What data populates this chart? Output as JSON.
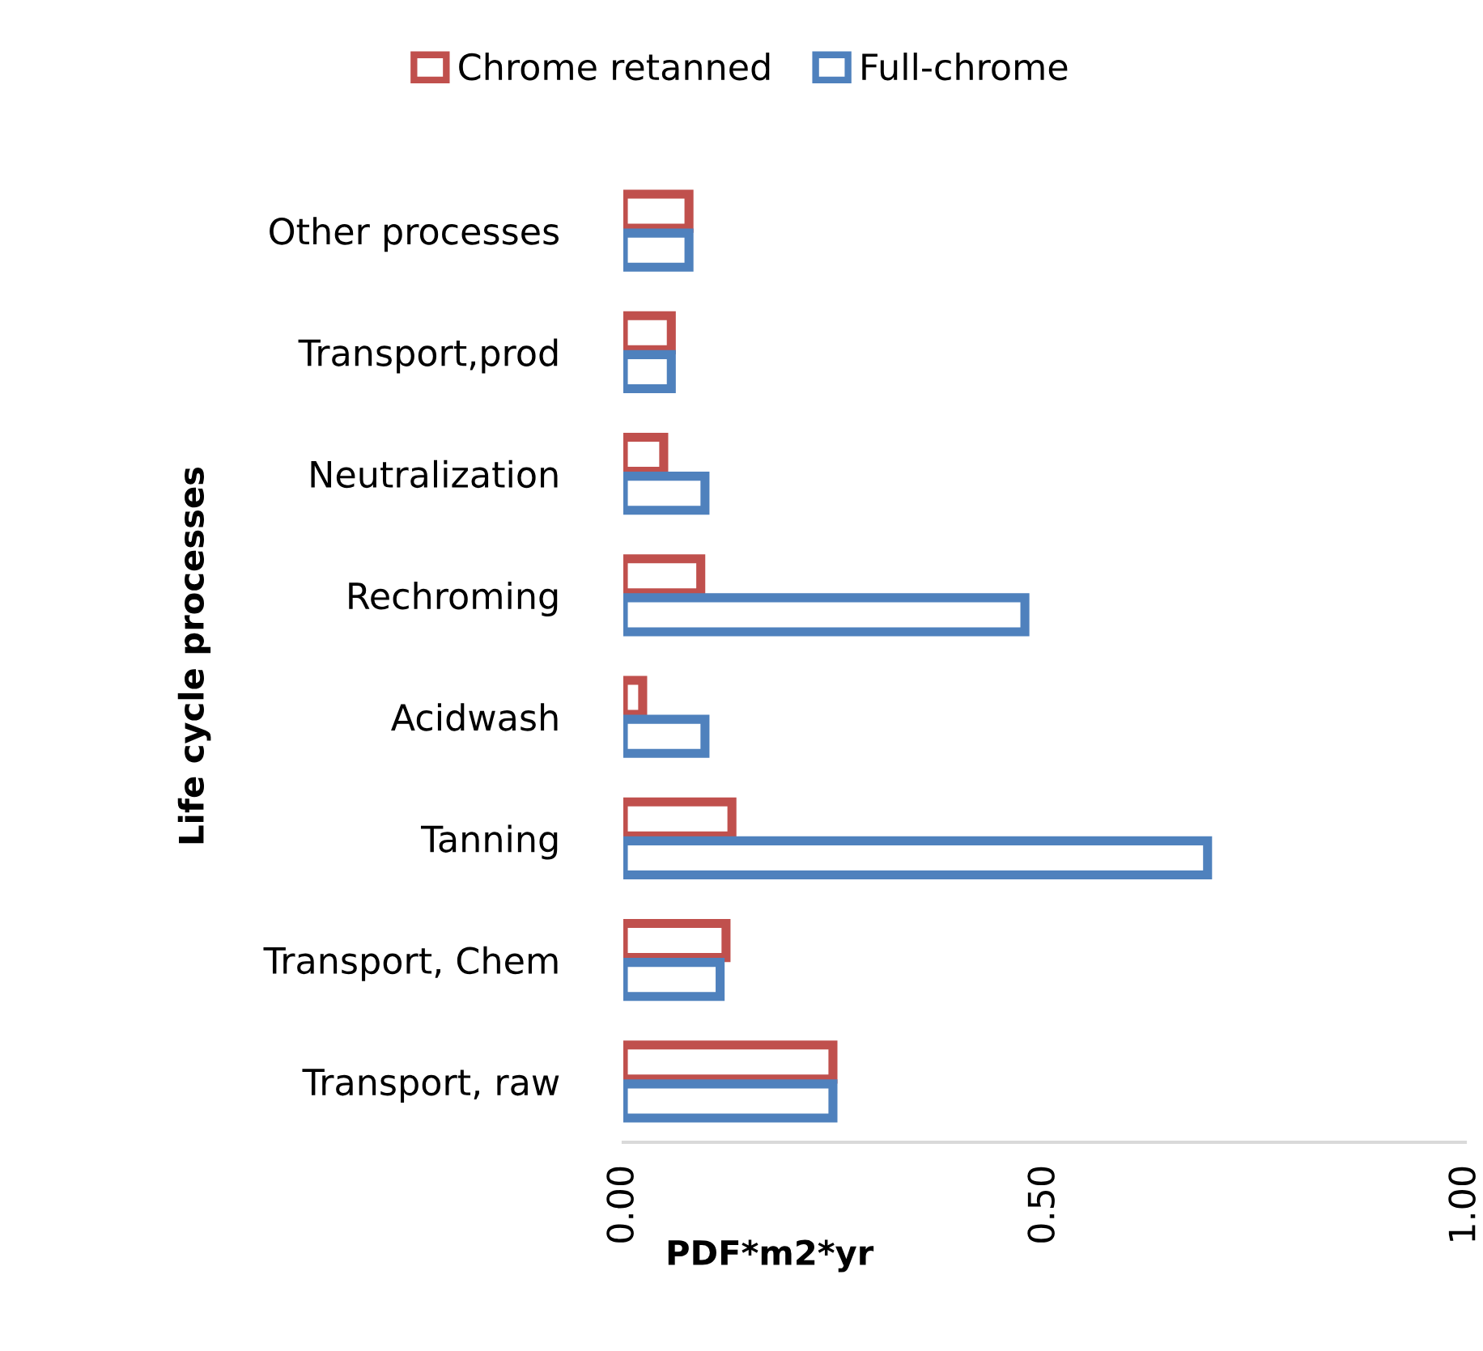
{
  "chart_data": {
    "type": "bar",
    "orientation": "horizontal",
    "xlabel": "PDF*m2*yr",
    "ylabel": "Life cycle processes",
    "categories": [
      "Other processes",
      "Transport,prod",
      "Neutralization",
      "Rechroming",
      "Acidwash",
      "Tanning",
      "Transport, Chem",
      "Transport, raw"
    ],
    "series": [
      {
        "name": "Chrome retanned",
        "color": "#c0504d",
        "values": [
          0.078,
          0.057,
          0.048,
          0.092,
          0.023,
          0.129,
          0.122,
          0.249
        ]
      },
      {
        "name": "Full-chrome",
        "color": "#4f81bd",
        "values": [
          0.078,
          0.057,
          0.097,
          0.477,
          0.097,
          0.694,
          0.115,
          0.249
        ]
      }
    ],
    "xlim": [
      0,
      1
    ],
    "xticks": [
      {
        "value": 0,
        "label": "0.00"
      },
      {
        "value": 0.5,
        "label": "0.50"
      },
      {
        "value": 1,
        "label": "1.00"
      }
    ],
    "grid": false,
    "legend": "top"
  }
}
